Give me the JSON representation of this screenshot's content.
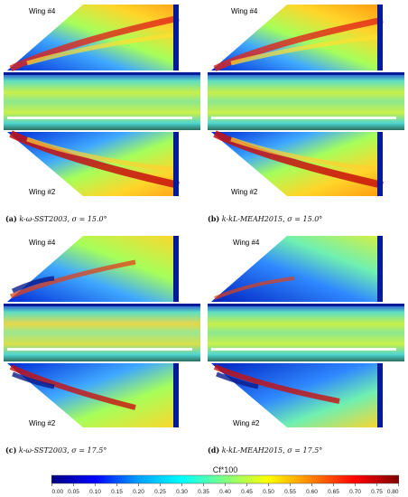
{
  "panels": [
    {
      "id": "a",
      "prefix": "(a)",
      "label": "k-ω-SST2003,",
      "sigma": "σ = 15.0°",
      "wing_top": "Wing #4",
      "wing_bottom": "Wing #2"
    },
    {
      "id": "b",
      "prefix": "(b)",
      "label": "k-kL-MEAH2015,",
      "sigma": "σ = 15.0°",
      "wing_top": "Wing #4",
      "wing_bottom": "Wing #2"
    },
    {
      "id": "c",
      "prefix": "(c)",
      "label": "k-ω-SST2003,",
      "sigma": "σ = 17.5°",
      "wing_top": "Wing #4",
      "wing_bottom": "Wing #2"
    },
    {
      "id": "d",
      "prefix": "(d)",
      "label": "k-kL-MEAH2015,",
      "sigma": "σ = 17.5°",
      "wing_top": "Wing #4",
      "wing_bottom": "Wing #2"
    }
  ],
  "colorbar": {
    "title": "Cf*100",
    "ticks": [
      "0.00",
      "0.05",
      "0.10",
      "0.15",
      "0.20",
      "0.25",
      "0.30",
      "0.35",
      "0.40",
      "0.45",
      "0.50",
      "0.55",
      "0.60",
      "0.65",
      "0.70",
      "0.75",
      "0.80"
    ],
    "colors": [
      "#000080",
      "#0000ff",
      "#00a0ff",
      "#00ffff",
      "#80ff80",
      "#ffff00",
      "#ff8000",
      "#ff0000",
      "#800000"
    ]
  }
}
